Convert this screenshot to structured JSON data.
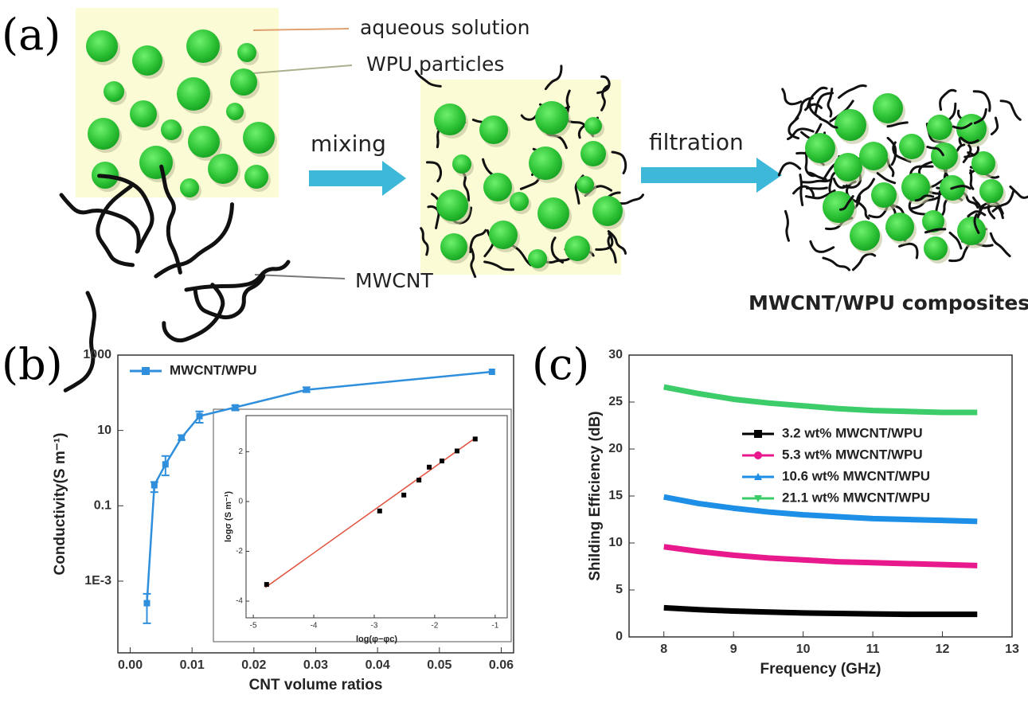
{
  "panel_labels": [
    "(a)",
    "(b)",
    "(c)"
  ],
  "diagram": {
    "aqueous_label": "aqueous solution",
    "particles_label": "WPU particles",
    "mixing": "mixing",
    "filtration": "filtration",
    "cnt_label": "MWCNT",
    "product": "MWCNT/WPU composites"
  },
  "chart_data": [
    {
      "type": "line",
      "xlabel": "CNT volume ratios",
      "ylabel": "Conductivity(S m⁻¹)",
      "yscale": "log",
      "legend": "upper left",
      "xlim": [
        -0.002,
        0.062
      ],
      "xticks": [
        {
          "value": 0,
          "label": "0.00"
        },
        0.01,
        0.02,
        0.03,
        0.04,
        0.05,
        0.06
      ],
      "ylim": [
        1.25e-05,
        1000
      ],
      "yticks": [
        {
          "value": 0.001,
          "label": "1E-3"
        },
        0.1,
        10,
        1000
      ],
      "x": [
        0.0027,
        0.0039,
        0.0057,
        0.0083,
        0.0112,
        0.017,
        0.0285,
        0.0585
      ],
      "series": [
        {
          "name": "MWCNT/WPU",
          "color": "#2f8fdc",
          "values": [
            0.00026,
            0.35,
            1.26,
            6.4,
            24,
            41,
            120,
            360
          ],
          "lower": [
            7.6e-05,
            0.23,
            0.64,
            5.6,
            16,
            34,
            105,
            null
          ],
          "upper": [
            0.00046,
            0.43,
            2.1,
            7.5,
            32,
            46,
            140,
            null
          ]
        }
      ]
    },
    {
      "type": "scatter",
      "xlabel": "log(φ−φc)",
      "ylabel": "logσ (S m⁻¹)",
      "xlim": [
        -5.12,
        -0.8
      ],
      "xticks": [
        -5,
        -4,
        -3,
        -2,
        -1
      ],
      "ylim": [
        -4.67,
        3.45
      ],
      "yticks": [
        -4,
        -2,
        0,
        2
      ],
      "x": [
        -4.78,
        -2.91,
        -2.51,
        -2.26,
        -2.09,
        -1.88,
        -1.63,
        -1.33
      ],
      "values": [
        -3.33,
        -0.38,
        0.26,
        0.86,
        1.38,
        1.63,
        2.03,
        2.51
      ],
      "color": "#000000",
      "fit": {
        "x": [
          -4.8,
          -1.3
        ],
        "y": [
          -3.45,
          2.6
        ],
        "color": "#e0503c"
      }
    },
    {
      "type": "line",
      "xlabel": "Frequency (GHz)",
      "ylabel": "Shilding Efficiency (dB)",
      "legend": "center right",
      "xlim": [
        7.5,
        13
      ],
      "xticks": [
        8,
        9,
        10,
        11,
        12,
        13
      ],
      "ylim": [
        0,
        30
      ],
      "yticks": [
        0,
        5,
        10,
        15,
        20,
        25,
        30
      ],
      "x": [
        8,
        8.5,
        9,
        9.5,
        10,
        10.5,
        11,
        11.5,
        12,
        12.5
      ],
      "series": [
        {
          "name": "3.2 wt% MWCNT/WPU",
          "color": "#000000",
          "marker": "square",
          "values": [
            3.1,
            2.9,
            2.75,
            2.65,
            2.55,
            2.5,
            2.45,
            2.4,
            2.4,
            2.4
          ]
        },
        {
          "name": "5.3 wt% MWCNT/WPU",
          "color": "#e8198c",
          "marker": "circle",
          "values": [
            9.6,
            9.1,
            8.7,
            8.4,
            8.2,
            8.0,
            7.9,
            7.8,
            7.7,
            7.6
          ]
        },
        {
          "name": "10.6 wt% MWCNT/WPU",
          "color": "#1e8fe6",
          "marker": "triangle-up",
          "values": [
            14.9,
            14.2,
            13.7,
            13.3,
            13.0,
            12.8,
            12.6,
            12.5,
            12.4,
            12.3
          ]
        },
        {
          "name": "21.1 wt% MWCNT/WPU",
          "color": "#3ccc6a",
          "marker": "triangle-down",
          "values": [
            26.6,
            25.9,
            25.3,
            24.9,
            24.6,
            24.3,
            24.1,
            24.0,
            23.9,
            23.9
          ]
        }
      ]
    }
  ]
}
